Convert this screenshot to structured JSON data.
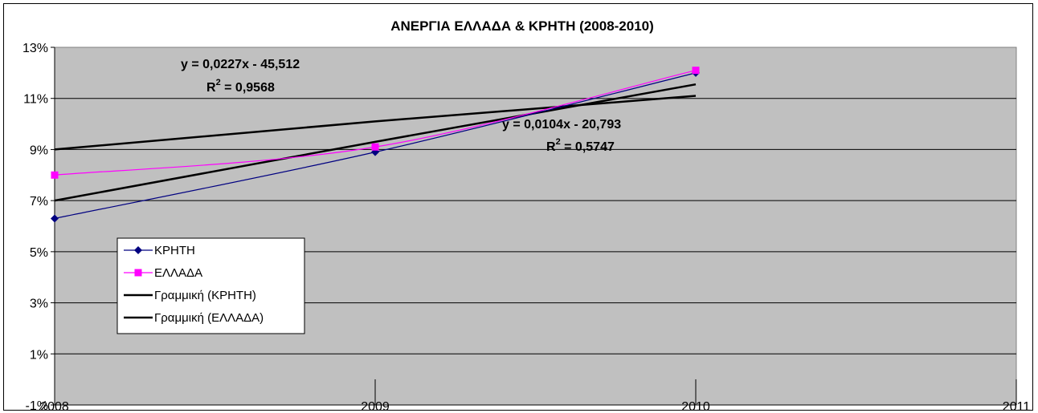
{
  "chart_data": {
    "type": "line",
    "title": "ΑΝΕΡΓΙΑ ΕΛΛΑΔΑ & ΚΡΗΤΗ (2008-2010)",
    "xlabel": "",
    "ylabel": "",
    "x": [
      2008,
      2009,
      2010
    ],
    "xlim": [
      2008,
      2011
    ],
    "x_ticks": [
      "2008",
      "2009",
      "2010",
      "2011"
    ],
    "ylim": [
      -1,
      13
    ],
    "y_ticks": [
      "-1%",
      "1%",
      "3%",
      "5%",
      "7%",
      "9%",
      "11%",
      "13%"
    ],
    "grid": true,
    "plot_background": "#c0c0c0",
    "series": [
      {
        "name": "ΚΡΗΤΗ",
        "values": [
          6.3,
          8.9,
          12.0
        ],
        "color": "#000080",
        "marker": "diamond"
      },
      {
        "name": "ΕΛΛΑΔΑ",
        "values": [
          8.0,
          9.1,
          12.1
        ],
        "color": "#ff00ff",
        "marker": "square"
      }
    ],
    "trendlines": [
      {
        "name": "Γραμμική (ΚΡΗΤΗ)",
        "values": [
          7.0,
          9.3,
          11.55
        ],
        "color": "#000000",
        "equation": "y = 0,0227x  - 45,512",
        "r2_label": "R",
        "r2_value": " = 0,9568"
      },
      {
        "name": "Γραμμική (ΕΛΛΑΔΑ)",
        "values": [
          9.0,
          10.1,
          11.1
        ],
        "color": "#000000",
        "equation": "y = 0,0104x  - 20,793",
        "r2_label": "R",
        "r2_value": " = 0,5747"
      }
    ],
    "legend_position": "lower-left"
  }
}
